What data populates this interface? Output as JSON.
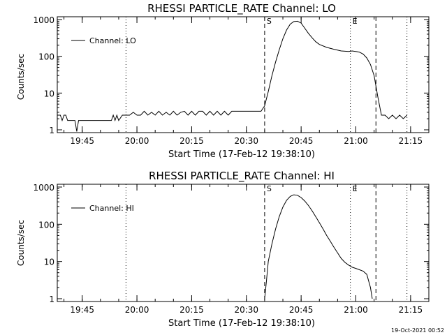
{
  "footer": "19-Oct-2021 00:52",
  "chart_data": [
    {
      "type": "line",
      "title": "RHESSI PARTICLE_RATE Channel: LO",
      "xlabel": "Start Time (17-Feb-12 19:38:10)",
      "ylabel": "Counts/sec",
      "yscale": "log",
      "ylim": [
        1,
        1000
      ],
      "xlim": [
        "19:38:10",
        "21:20:00"
      ],
      "x_ticks": [
        "19:45",
        "20:00",
        "20:15",
        "20:30",
        "20:45",
        "21:00",
        "21:15"
      ],
      "y_ticks": [
        "1",
        "10",
        "100",
        "1000"
      ],
      "legend": {
        "position": "top-left",
        "entries": [
          "Channel: LO"
        ]
      },
      "markers": [
        {
          "label": "S",
          "time": "20:35:00",
          "style": "dashed"
        },
        {
          "label": "E",
          "time": "20:58:30",
          "style": "dotted"
        },
        {
          "style": "dashed",
          "time": "21:05:30"
        },
        {
          "style": "dotted",
          "time": "19:57:00"
        },
        {
          "style": "dotted",
          "time": "21:14:00"
        }
      ],
      "series": [
        {
          "name": "Channel: LO",
          "x": [
            "19:38:10",
            "19:39:00",
            "19:39:30",
            "19:40:00",
            "19:40:30",
            "19:41:00",
            "19:41:30",
            "19:42:00",
            "19:43:00",
            "19:43:30",
            "19:44:00",
            "19:46:00",
            "19:50:00",
            "19:53:00",
            "19:53:30",
            "19:54:00",
            "19:54:30",
            "19:55:00",
            "19:56:00",
            "19:57:00",
            "19:58:00",
            "19:59:00",
            "20:00:00",
            "20:01:00",
            "20:02:00",
            "20:03:00",
            "20:04:00",
            "20:05:00",
            "20:06:00",
            "20:07:00",
            "20:08:00",
            "20:09:00",
            "20:10:00",
            "20:11:00",
            "20:12:00",
            "20:13:00",
            "20:14:00",
            "20:15:00",
            "20:16:00",
            "20:17:00",
            "20:18:00",
            "20:19:00",
            "20:20:00",
            "20:21:00",
            "20:22:00",
            "20:23:00",
            "20:24:00",
            "20:25:00",
            "20:26:00",
            "20:27:00",
            "20:28:00",
            "20:29:00",
            "20:30:00",
            "20:31:00",
            "20:32:00",
            "20:33:00",
            "20:34:00",
            "20:35:00",
            "20:36:00",
            "20:37:00",
            "20:38:00",
            "20:39:00",
            "20:40:00",
            "20:41:00",
            "20:42:00",
            "20:43:00",
            "20:44:00",
            "20:45:00",
            "20:46:00",
            "20:47:00",
            "20:48:00",
            "20:49:00",
            "20:50:00",
            "20:52:00",
            "20:54:00",
            "20:56:00",
            "20:58:00",
            "20:59:00",
            "21:00:00",
            "21:01:00",
            "21:02:00",
            "21:03:00",
            "21:04:00",
            "21:05:00",
            "21:06:00",
            "21:07:00",
            "21:08:00",
            "21:09:00",
            "21:10:00",
            "21:11:00",
            "21:12:00",
            "21:13:00",
            "21:14:00"
          ],
          "values": [
            2.5,
            2.5,
            1.8,
            2.5,
            2.5,
            1.8,
            1.8,
            1.8,
            1.8,
            0.9,
            1.8,
            1.8,
            1.8,
            1.8,
            2.5,
            1.8,
            2.5,
            1.8,
            2.5,
            2.5,
            2.5,
            3.0,
            2.5,
            2.5,
            3.2,
            2.5,
            3.0,
            2.5,
            3.2,
            2.5,
            3.0,
            2.5,
            3.2,
            2.5,
            3.0,
            3.2,
            2.5,
            3.2,
            2.5,
            3.2,
            3.2,
            2.5,
            3.2,
            2.5,
            3.2,
            2.5,
            3.2,
            2.5,
            3.2,
            3.2,
            3.2,
            3.2,
            3.2,
            3.2,
            3.2,
            3.2,
            3.2,
            4.5,
            11,
            30,
            70,
            150,
            300,
            520,
            750,
            880,
            900,
            800,
            580,
            420,
            320,
            250,
            210,
            175,
            155,
            140,
            135,
            140,
            135,
            130,
            115,
            90,
            60,
            30,
            8,
            2.5,
            2.5,
            2,
            2.5,
            2,
            2.5,
            2,
            2.5
          ]
        }
      ]
    },
    {
      "type": "line",
      "title": "RHESSI PARTICLE_RATE Channel: HI",
      "xlabel": "Start Time (17-Feb-12 19:38:10)",
      "ylabel": "Counts/sec",
      "yscale": "log",
      "ylim": [
        1,
        1000
      ],
      "xlim": [
        "19:38:10",
        "21:20:00"
      ],
      "x_ticks": [
        "19:45",
        "20:00",
        "20:15",
        "20:30",
        "20:45",
        "21:00",
        "21:15"
      ],
      "y_ticks": [
        "1",
        "10",
        "100",
        "1000"
      ],
      "legend": {
        "position": "top-left",
        "entries": [
          "Channel: HI"
        ]
      },
      "markers": [
        {
          "label": "S",
          "time": "20:35:00",
          "style": "dashed"
        },
        {
          "label": "E",
          "time": "20:58:30",
          "style": "dotted"
        },
        {
          "style": "dashed",
          "time": "21:05:30"
        },
        {
          "style": "dotted",
          "time": "19:57:00"
        },
        {
          "style": "dotted",
          "time": "21:14:00"
        }
      ],
      "series": [
        {
          "name": "Channel: HI",
          "x": [
            "20:35:00",
            "20:35:30",
            "20:36:00",
            "20:37:00",
            "20:38:00",
            "20:39:00",
            "20:40:00",
            "20:41:00",
            "20:42:00",
            "20:43:00",
            "20:44:00",
            "20:45:00",
            "20:46:00",
            "20:47:00",
            "20:48:00",
            "20:49:00",
            "20:50:00",
            "20:51:00",
            "20:52:00",
            "20:53:00",
            "20:54:00",
            "20:55:00",
            "20:56:00",
            "20:57:00",
            "20:58:00",
            "20:59:00",
            "21:00:00",
            "21:01:00",
            "21:02:00",
            "21:03:00",
            "21:04:00",
            "21:04:30"
          ],
          "values": [
            1,
            3,
            10,
            30,
            75,
            160,
            290,
            440,
            560,
            620,
            600,
            520,
            420,
            320,
            230,
            160,
            110,
            75,
            50,
            35,
            24,
            17,
            12,
            9.5,
            8,
            7,
            6.5,
            6,
            5.5,
            4.5,
            2,
            1
          ]
        }
      ]
    }
  ]
}
